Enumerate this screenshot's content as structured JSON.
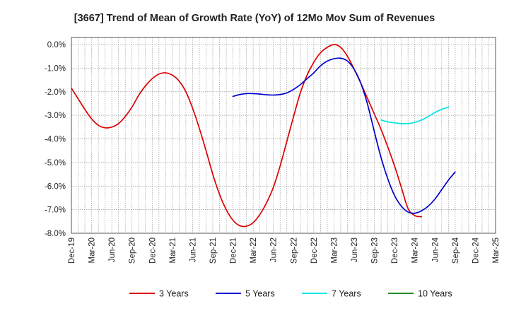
{
  "chart_data": {
    "type": "line",
    "title": "[3667]  Trend of Mean of Growth Rate (YoY) of 12Mo Mov Sum of Revenues",
    "xlabel": "",
    "ylabel": "",
    "ylim": [
      -8.0,
      0.3
    ],
    "yticks": [
      0,
      -1,
      -2,
      -3,
      -4,
      -5,
      -6,
      -7,
      -8
    ],
    "ytick_labels": [
      "0.0%",
      "-1.0%",
      "-2.0%",
      "-3.0%",
      "-4.0%",
      "-5.0%",
      "-6.0%",
      "-7.0%",
      "-8.0%"
    ],
    "grid": true,
    "legend_position": "bottom",
    "x_labels": [
      "Dec-19",
      "Mar-20",
      "Jun-20",
      "Sep-20",
      "Dec-20",
      "Mar-21",
      "Jun-21",
      "Sep-21",
      "Dec-21",
      "Mar-22",
      "Jun-22",
      "Sep-22",
      "Dec-22",
      "Mar-23",
      "Jun-23",
      "Sep-23",
      "Dec-23",
      "Mar-24",
      "Jun-24",
      "Sep-24",
      "Dec-24",
      "Mar-25"
    ],
    "x_range_months": [
      0,
      63
    ],
    "series": [
      {
        "name": "3 Years",
        "color": "#dd0000",
        "points": [
          [
            0,
            -1.85
          ],
          [
            1,
            -2.3
          ],
          [
            2,
            -2.75
          ],
          [
            3,
            -3.15
          ],
          [
            4,
            -3.42
          ],
          [
            5,
            -3.53
          ],
          [
            6,
            -3.5
          ],
          [
            7,
            -3.35
          ],
          [
            8,
            -3.05
          ],
          [
            9,
            -2.65
          ],
          [
            10,
            -2.15
          ],
          [
            11,
            -1.75
          ],
          [
            12,
            -1.45
          ],
          [
            13,
            -1.25
          ],
          [
            14,
            -1.2
          ],
          [
            15,
            -1.3
          ],
          [
            16,
            -1.55
          ],
          [
            17,
            -2.0
          ],
          [
            18,
            -2.7
          ],
          [
            19,
            -3.55
          ],
          [
            20,
            -4.5
          ],
          [
            21,
            -5.5
          ],
          [
            22,
            -6.35
          ],
          [
            23,
            -7.0
          ],
          [
            24,
            -7.45
          ],
          [
            25,
            -7.68
          ],
          [
            26,
            -7.7
          ],
          [
            27,
            -7.55
          ],
          [
            28,
            -7.2
          ],
          [
            29,
            -6.7
          ],
          [
            30,
            -6.05
          ],
          [
            31,
            -5.15
          ],
          [
            32,
            -4.1
          ],
          [
            33,
            -3.05
          ],
          [
            34,
            -2.05
          ],
          [
            35,
            -1.3
          ],
          [
            36,
            -0.75
          ],
          [
            37,
            -0.35
          ],
          [
            38,
            -0.12
          ],
          [
            39,
            0.0
          ],
          [
            40,
            -0.12
          ],
          [
            41,
            -0.5
          ],
          [
            42,
            -1.05
          ],
          [
            43,
            -1.65
          ],
          [
            44,
            -2.3
          ],
          [
            45,
            -2.95
          ],
          [
            46,
            -3.6
          ],
          [
            47,
            -4.35
          ],
          [
            48,
            -5.15
          ],
          [
            49,
            -6.05
          ],
          [
            50,
            -6.95
          ],
          [
            51,
            -7.25
          ],
          [
            52,
            -7.3
          ]
        ]
      },
      {
        "name": "5 Years",
        "color": "#0000cc",
        "points": [
          [
            24,
            -2.2
          ],
          [
            25,
            -2.12
          ],
          [
            26,
            -2.08
          ],
          [
            27,
            -2.08
          ],
          [
            28,
            -2.1
          ],
          [
            29,
            -2.13
          ],
          [
            30,
            -2.14
          ],
          [
            31,
            -2.12
          ],
          [
            32,
            -2.05
          ],
          [
            33,
            -1.9
          ],
          [
            34,
            -1.7
          ],
          [
            35,
            -1.45
          ],
          [
            36,
            -1.2
          ],
          [
            37,
            -0.9
          ],
          [
            38,
            -0.7
          ],
          [
            39,
            -0.6
          ],
          [
            40,
            -0.58
          ],
          [
            41,
            -0.7
          ],
          [
            42,
            -1.05
          ],
          [
            43,
            -1.65
          ],
          [
            44,
            -2.55
          ],
          [
            45,
            -3.7
          ],
          [
            46,
            -4.8
          ],
          [
            47,
            -5.7
          ],
          [
            48,
            -6.4
          ],
          [
            49,
            -6.85
          ],
          [
            50,
            -7.1
          ],
          [
            51,
            -7.15
          ],
          [
            52,
            -7.05
          ],
          [
            53,
            -6.85
          ],
          [
            54,
            -6.55
          ],
          [
            55,
            -6.15
          ],
          [
            56,
            -5.75
          ],
          [
            57,
            -5.4
          ]
        ]
      },
      {
        "name": "7 Years",
        "color": "#00e5e5",
        "points": [
          [
            46,
            -3.2
          ],
          [
            47,
            -3.28
          ],
          [
            48,
            -3.32
          ],
          [
            49,
            -3.35
          ],
          [
            50,
            -3.35
          ],
          [
            51,
            -3.3
          ],
          [
            52,
            -3.2
          ],
          [
            53,
            -3.05
          ],
          [
            54,
            -2.88
          ],
          [
            55,
            -2.75
          ],
          [
            56,
            -2.65
          ]
        ]
      },
      {
        "name": "10 Years",
        "color": "#228b22",
        "points": []
      }
    ]
  }
}
